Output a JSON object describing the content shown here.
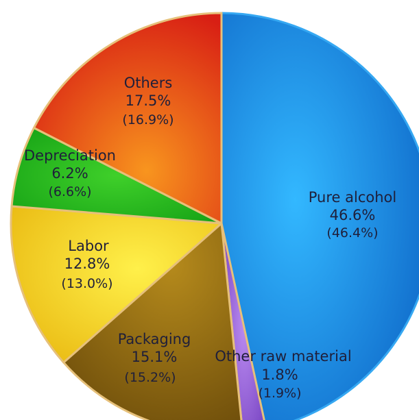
{
  "chart_data": {
    "type": "pie",
    "title": "",
    "slices": [
      {
        "label": "Pure alcohol",
        "value": 46.6,
        "secondary": "(46.4%)",
        "value_text": "46.6%",
        "color": "#1a8be6"
      },
      {
        "label": "Other raw material",
        "value": 1.8,
        "secondary": "(1.9%)",
        "value_text": "1.8%",
        "color": "#8e4fd8"
      },
      {
        "label": "Packaging",
        "value": 15.1,
        "secondary": "(15.2%)",
        "value_text": "15.1%",
        "color": "#9a6e12"
      },
      {
        "label": "Labor",
        "value": 12.8,
        "secondary": "(13.0%)",
        "value_text": "12.8%",
        "color": "#f2d21c"
      },
      {
        "label": "Depreciation",
        "value": 6.2,
        "secondary": "(6.6%)",
        "value_text": "6.2%",
        "color": "#22b41c"
      },
      {
        "label": "Others",
        "value": 17.5,
        "secondary": "(16.9%)",
        "value_text": "17.5%",
        "color": "#ee5a14"
      }
    ],
    "legend": "none",
    "start": "top",
    "direction": "clockwise"
  }
}
